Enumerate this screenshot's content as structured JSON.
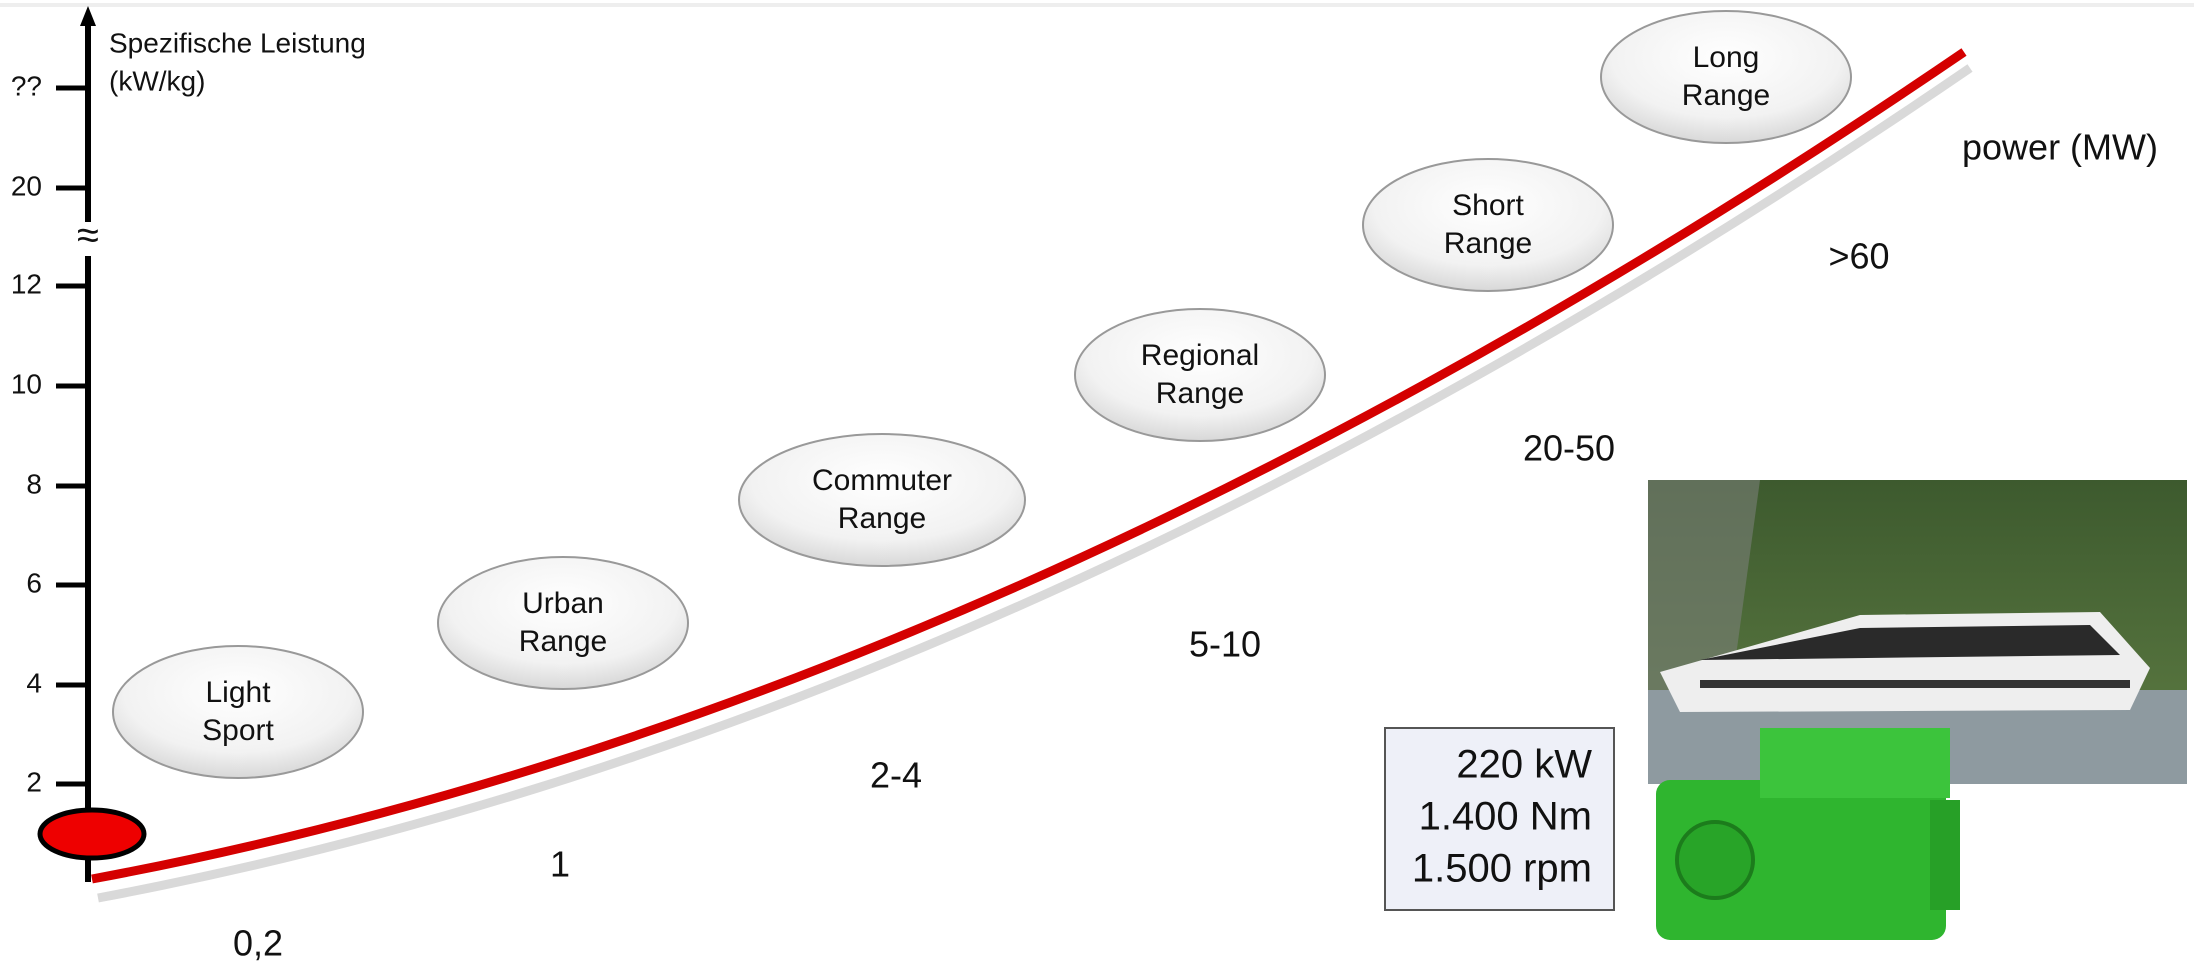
{
  "axis": {
    "title": [
      "Spezifische Leistung",
      "(kW/kg)"
    ],
    "ticks": [
      "??",
      "20",
      "12",
      "10",
      "8",
      "6",
      "4",
      "2"
    ]
  },
  "categories": [
    {
      "label": [
        "Light",
        "Sport"
      ],
      "power": "0,2"
    },
    {
      "label": [
        "Urban",
        "Range"
      ],
      "power": "1"
    },
    {
      "label": [
        "Commuter",
        "Range"
      ],
      "power": "2-4"
    },
    {
      "label": [
        "Regional",
        "Range"
      ],
      "power": "5-10"
    },
    {
      "label": [
        "Short",
        "Range"
      ],
      "power": "20-50"
    },
    {
      "label": [
        "Long",
        "Range"
      ],
      "power": ">60"
    }
  ],
  "x_axis_title": "power (MW)",
  "spec": [
    "220 kW",
    "1.400 Nm",
    "1.500 rpm"
  ]
}
